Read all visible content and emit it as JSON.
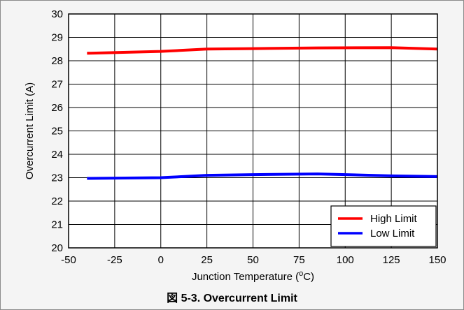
{
  "chart_data": {
    "type": "line",
    "caption": "図 5-3. Overcurrent Limit",
    "xlabel": "Junction Temperature (",
    "xlabel_sup": "o",
    "xlabel_suffix": "C)",
    "ylabel": "Overcurrent Limit (A)",
    "xlim": [
      -50,
      150
    ],
    "ylim": [
      20,
      30
    ],
    "xticks": [
      -50,
      -25,
      0,
      25,
      50,
      75,
      100,
      125,
      150
    ],
    "yticks": [
      20,
      21,
      22,
      23,
      24,
      25,
      26,
      27,
      28,
      29,
      30
    ],
    "grid": true,
    "legend_position": "bottom-right",
    "series": [
      {
        "name": "High Limit",
        "color": "#ff0000",
        "x": [
          -40,
          0,
          25,
          50,
          85,
          125,
          150
        ],
        "y": [
          28.32,
          28.4,
          28.5,
          28.52,
          28.55,
          28.56,
          28.5
        ]
      },
      {
        "name": "Low Limit",
        "color": "#0000ff",
        "x": [
          -40,
          0,
          25,
          50,
          85,
          125,
          150
        ],
        "y": [
          22.97,
          23.0,
          23.1,
          23.13,
          23.16,
          23.08,
          23.05
        ]
      }
    ]
  }
}
